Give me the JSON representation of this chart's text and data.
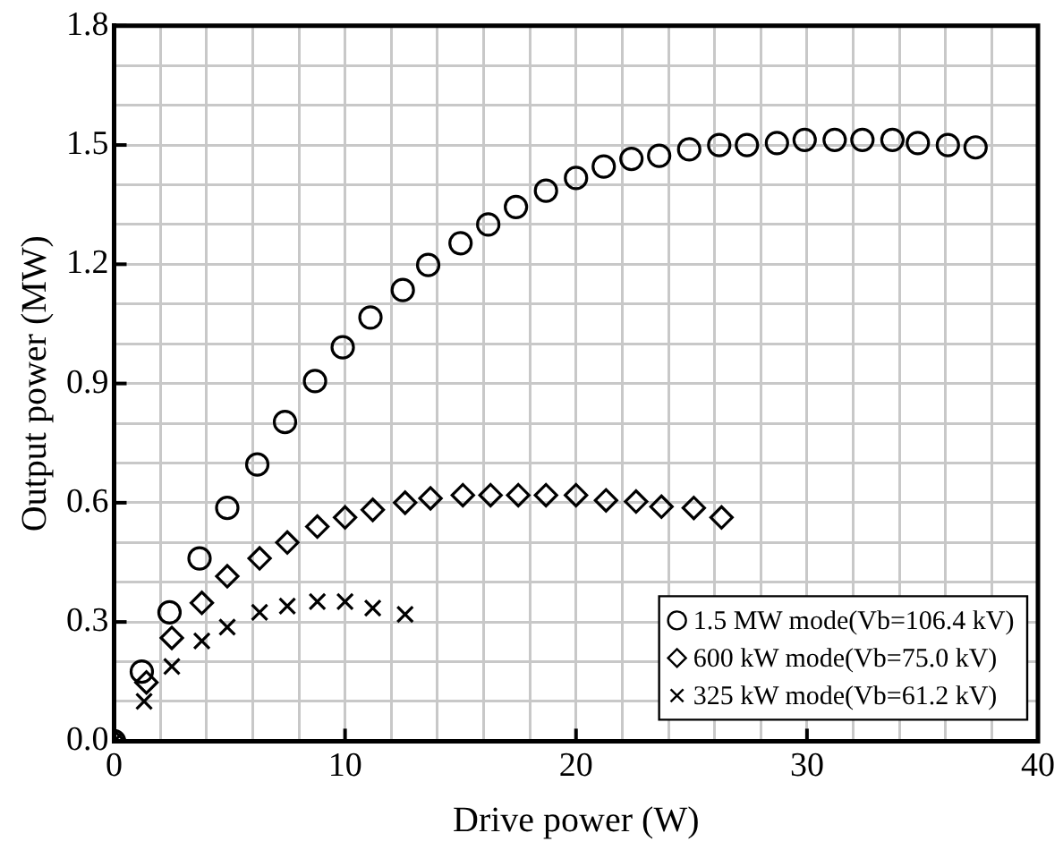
{
  "chart_data": {
    "type": "scatter",
    "xlabel": "Drive power (W)",
    "ylabel": "Output power (MW)",
    "xlim": [
      0,
      40
    ],
    "ylim": [
      0,
      1.8
    ],
    "xticks": [
      0,
      {
        "value": 2,
        "label": null
      },
      {
        "value": 4,
        "label": null
      },
      {
        "value": 6,
        "label": null
      },
      {
        "value": 8,
        "label": null
      },
      10,
      {
        "value": 12,
        "label": null
      },
      {
        "value": 14,
        "label": null
      },
      {
        "value": 16,
        "label": null
      },
      {
        "value": 18,
        "label": null
      },
      20,
      {
        "value": 22,
        "label": null
      },
      {
        "value": 24,
        "label": null
      },
      {
        "value": 26,
        "label": null
      },
      {
        "value": 28,
        "label": null
      },
      30,
      {
        "value": 32,
        "label": null
      },
      {
        "value": 34,
        "label": null
      },
      {
        "value": 36,
        "label": null
      },
      {
        "value": 38,
        "label": null
      },
      40
    ],
    "yticks": [
      {
        "value": 0,
        "label": "0.0"
      },
      {
        "value": 0.1,
        "label": null
      },
      {
        "value": 0.2,
        "label": null
      },
      0.3,
      {
        "value": 0.4,
        "label": null
      },
      {
        "value": 0.5,
        "label": null
      },
      0.6,
      {
        "value": 0.7,
        "label": null
      },
      {
        "value": 0.8,
        "label": null
      },
      0.9,
      {
        "value": 1.0,
        "label": null
      },
      {
        "value": 1.1,
        "label": null
      },
      1.2,
      {
        "value": 1.3,
        "label": null
      },
      {
        "value": 1.4,
        "label": null
      },
      1.5,
      {
        "value": 1.6,
        "label": null
      },
      {
        "value": 1.7,
        "label": null
      },
      1.8
    ],
    "grid": true,
    "legend": "bottom right",
    "series": [
      {
        "name": "1.5 MW mode(Vb=106.4 kV)",
        "color": "#000000",
        "marker": "circle",
        "x": [
          0,
          1.2,
          2.4,
          3.7,
          4.9,
          6.2,
          7.4,
          8.7,
          9.9,
          11.1,
          12.5,
          13.6,
          15.0,
          16.2,
          17.4,
          18.7,
          20.0,
          21.2,
          22.4,
          23.6,
          24.9,
          26.2,
          27.4,
          28.7,
          29.9,
          31.2,
          32.4,
          33.7,
          34.8,
          36.1,
          37.3
        ],
        "values": [
          0,
          0.175,
          0.324,
          0.46,
          0.587,
          0.696,
          0.803,
          0.906,
          0.991,
          1.066,
          1.135,
          1.198,
          1.253,
          1.3,
          1.344,
          1.385,
          1.417,
          1.446,
          1.465,
          1.473,
          1.489,
          1.5,
          1.5,
          1.505,
          1.513,
          1.513,
          1.513,
          1.513,
          1.505,
          1.5,
          1.494
        ]
      },
      {
        "name": "600 kW mode(Vb=75.0 kV)",
        "color": "#000000",
        "marker": "diamond",
        "x": [
          0,
          1.4,
          2.5,
          3.8,
          4.9,
          6.3,
          7.5,
          8.8,
          10.0,
          11.2,
          12.6,
          13.7,
          15.1,
          16.3,
          17.5,
          18.7,
          20.0,
          21.3,
          22.6,
          23.7,
          25.1,
          26.3
        ],
        "values": [
          0,
          0.148,
          0.26,
          0.348,
          0.415,
          0.46,
          0.5,
          0.54,
          0.563,
          0.582,
          0.6,
          0.611,
          0.619,
          0.619,
          0.619,
          0.619,
          0.619,
          0.606,
          0.603,
          0.59,
          0.587,
          0.563
        ]
      },
      {
        "name": "325 kW mode(Vb=61.2 kV)",
        "color": "#000000",
        "marker": "cross",
        "x": [
          0,
          1.3,
          2.5,
          3.8,
          4.9,
          6.3,
          7.5,
          8.8,
          10.0,
          11.2,
          12.6
        ],
        "values": [
          0,
          0.1,
          0.188,
          0.252,
          0.287,
          0.324,
          0.34,
          0.351,
          0.351,
          0.335,
          0.319
        ]
      }
    ]
  }
}
